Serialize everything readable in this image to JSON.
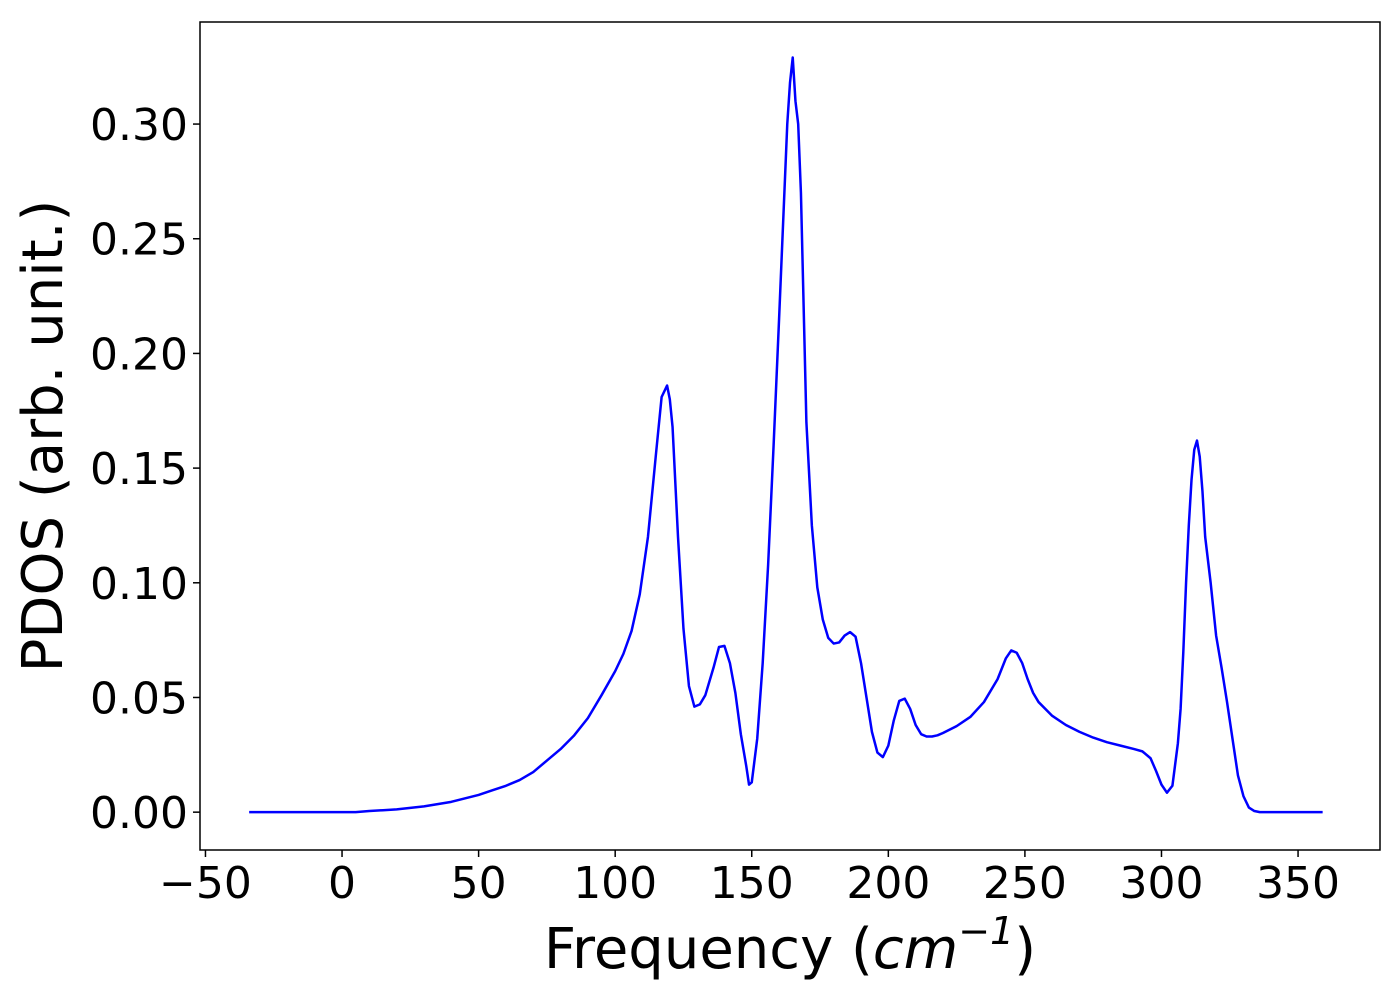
{
  "chart_data": {
    "type": "line",
    "title": "",
    "xlabel": "Frequency",
    "xlabel_unit_base": "cm",
    "xlabel_unit_exp": "−1",
    "ylabel": "PDOS (arb. unit.)",
    "xlim": [
      -52,
      380
    ],
    "ylim": [
      -0.0165,
      0.3445
    ],
    "xticks": [
      -50,
      0,
      50,
      100,
      150,
      200,
      250,
      300,
      350
    ],
    "xtick_labels": [
      "−50",
      "0",
      "50",
      "100",
      "150",
      "200",
      "250",
      "300",
      "350"
    ],
    "yticks": [
      0.0,
      0.05,
      0.1,
      0.15,
      0.2,
      0.25,
      0.3
    ],
    "ytick_labels": [
      "0.00",
      "0.05",
      "0.10",
      "0.15",
      "0.20",
      "0.25",
      "0.30"
    ],
    "grid": false,
    "legend": "none",
    "line_color": "#0000ff",
    "series": [
      {
        "x": [
          -34,
          -20,
          0,
          5,
          10,
          20,
          30,
          40,
          50,
          55,
          60,
          65,
          70,
          75,
          80,
          85,
          90,
          95,
          100,
          103,
          106,
          109,
          112,
          115,
          117,
          119,
          120,
          121,
          123,
          125,
          127,
          129,
          131,
          133,
          136,
          138,
          140,
          142,
          144,
          146,
          148,
          149,
          150,
          152,
          154,
          156,
          158,
          160,
          163,
          164,
          165,
          166,
          167,
          168,
          170,
          172,
          174,
          176,
          178,
          180,
          182,
          184,
          186,
          188,
          190,
          192,
          194,
          196,
          198,
          200,
          202,
          204,
          206,
          208,
          210,
          212,
          214,
          216,
          218,
          220,
          225,
          230,
          235,
          240,
          243,
          245,
          247,
          249,
          251,
          253,
          255,
          260,
          265,
          270,
          275,
          280,
          285,
          290,
          293,
          296,
          298,
          300,
          302,
          304,
          306,
          307,
          308,
          309,
          310,
          311,
          312,
          313,
          314,
          315,
          316,
          318,
          320,
          322,
          324,
          326,
          328,
          330,
          332,
          334,
          336,
          340,
          350,
          359
        ],
        "y": [
          0.0,
          0.0,
          0.0,
          0.0,
          0.0005,
          0.0012,
          0.0025,
          0.0045,
          0.0075,
          0.0095,
          0.0115,
          0.014,
          0.0175,
          0.0225,
          0.0275,
          0.0335,
          0.041,
          0.051,
          0.0615,
          0.069,
          0.079,
          0.095,
          0.12,
          0.157,
          0.181,
          0.186,
          0.18,
          0.168,
          0.12,
          0.08,
          0.055,
          0.046,
          0.047,
          0.051,
          0.063,
          0.072,
          0.0725,
          0.065,
          0.052,
          0.034,
          0.02,
          0.012,
          0.013,
          0.032,
          0.065,
          0.108,
          0.16,
          0.215,
          0.3,
          0.318,
          0.329,
          0.31,
          0.3,
          0.27,
          0.17,
          0.125,
          0.098,
          0.084,
          0.076,
          0.0735,
          0.074,
          0.077,
          0.0785,
          0.0765,
          0.065,
          0.05,
          0.035,
          0.026,
          0.024,
          0.029,
          0.04,
          0.0485,
          0.0495,
          0.045,
          0.038,
          0.034,
          0.033,
          0.033,
          0.0335,
          0.0345,
          0.0375,
          0.0415,
          0.048,
          0.058,
          0.067,
          0.0705,
          0.0695,
          0.065,
          0.058,
          0.052,
          0.048,
          0.042,
          0.038,
          0.035,
          0.0325,
          0.0305,
          0.029,
          0.0275,
          0.0265,
          0.0235,
          0.018,
          0.012,
          0.0085,
          0.0115,
          0.03,
          0.045,
          0.07,
          0.1,
          0.125,
          0.145,
          0.158,
          0.162,
          0.155,
          0.14,
          0.12,
          0.1,
          0.077,
          0.063,
          0.048,
          0.032,
          0.016,
          0.007,
          0.002,
          0.0005,
          0.0,
          0.0,
          0.0,
          0.0
        ]
      }
    ]
  }
}
